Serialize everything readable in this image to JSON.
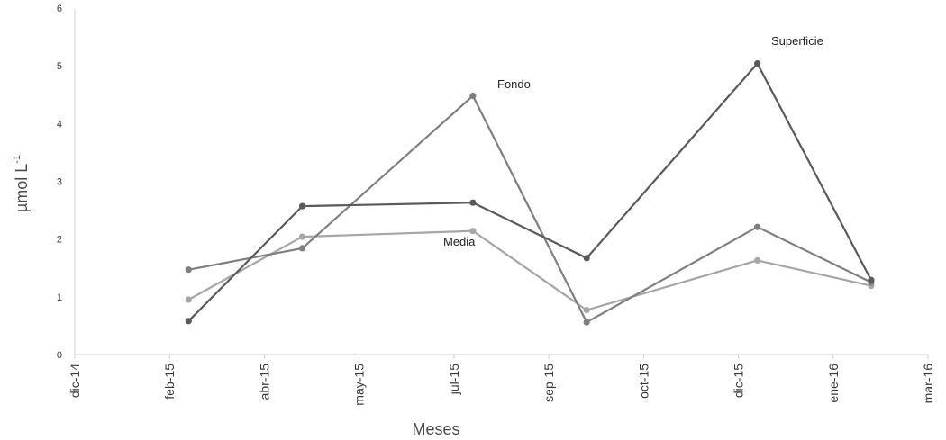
{
  "chart_data": {
    "type": "line",
    "title": "",
    "xlabel": "Meses",
    "ylabel": "µmol L",
    "ylabel_superscript": "-1",
    "ylim": [
      0,
      6
    ],
    "yticks": [
      "0",
      "1",
      "2",
      "3",
      "4",
      "5",
      "6"
    ],
    "x_tick_labels": [
      "dic-14",
      "feb-15",
      "abr-15",
      "may-15",
      "jul-15",
      "sep-15",
      "oct-15",
      "dic-15",
      "ene-16",
      "mar-16"
    ],
    "x_points": [
      "1.2",
      "2.4",
      "4.2",
      "5.4",
      "7.2",
      "8.4"
    ],
    "grid": false,
    "series": [
      {
        "name": "Superficie",
        "color": "#5a5a5a",
        "values": [
          0.58,
          2.57,
          2.63,
          1.67,
          5.04,
          1.29
        ]
      },
      {
        "name": "Fondo",
        "color": "#7f7f7f",
        "values": [
          1.47,
          1.84,
          4.48,
          0.56,
          2.21,
          1.25
        ]
      },
      {
        "name": "Media",
        "color": "#a6a6a6",
        "values": [
          0.95,
          2.04,
          2.14,
          0.77,
          1.63,
          1.19
        ]
      }
    ]
  }
}
